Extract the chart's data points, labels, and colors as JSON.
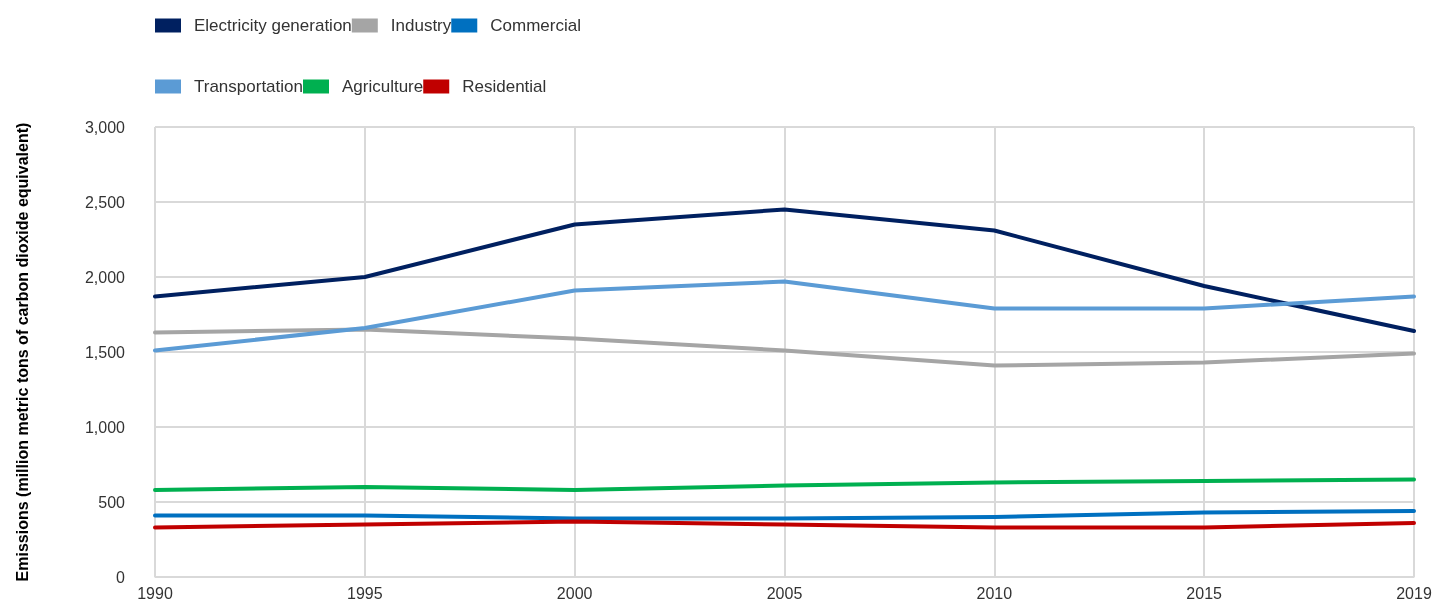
{
  "chart_data": {
    "type": "line",
    "ylabel": "Emissions (million metric tons of carbon dioxide equivalent)",
    "categories": [
      "1990",
      "1995",
      "2000",
      "2005",
      "2010",
      "2015",
      "2019"
    ],
    "series": [
      {
        "name": "Electricity generation",
        "color": "#002060",
        "values": [
          1870,
          2000,
          2350,
          2450,
          2310,
          1940,
          1640
        ]
      },
      {
        "name": "Industry",
        "color": "#a5a5a5",
        "values": [
          1630,
          1650,
          1590,
          1510,
          1410,
          1430,
          1490
        ]
      },
      {
        "name": "Commercial",
        "color": "#0070c0",
        "values": [
          410,
          410,
          390,
          390,
          400,
          430,
          440
        ]
      },
      {
        "name": "Transportation",
        "color": "#5b9bd5",
        "values": [
          1510,
          1660,
          1910,
          1970,
          1790,
          1790,
          1870
        ]
      },
      {
        "name": "Agriculture",
        "color": "#00b050",
        "values": [
          580,
          600,
          580,
          610,
          630,
          640,
          650
        ]
      },
      {
        "name": "Residential",
        "color": "#c00000",
        "values": [
          330,
          350,
          370,
          350,
          330,
          330,
          360
        ]
      }
    ],
    "ylim": [
      0,
      3000
    ],
    "yticks": [
      0,
      {
        "value": 500,
        "label": "500"
      },
      {
        "value": 1000,
        "label": "1,000"
      },
      {
        "value": 1500,
        "label": "1,500"
      },
      {
        "value": 2000,
        "label": "2,000"
      },
      {
        "value": 2500,
        "label": "2,500"
      },
      {
        "value": 3000,
        "label": "3,000"
      }
    ],
    "grid": true,
    "legend": "top",
    "marker": "none",
    "line_style": "solid"
  }
}
